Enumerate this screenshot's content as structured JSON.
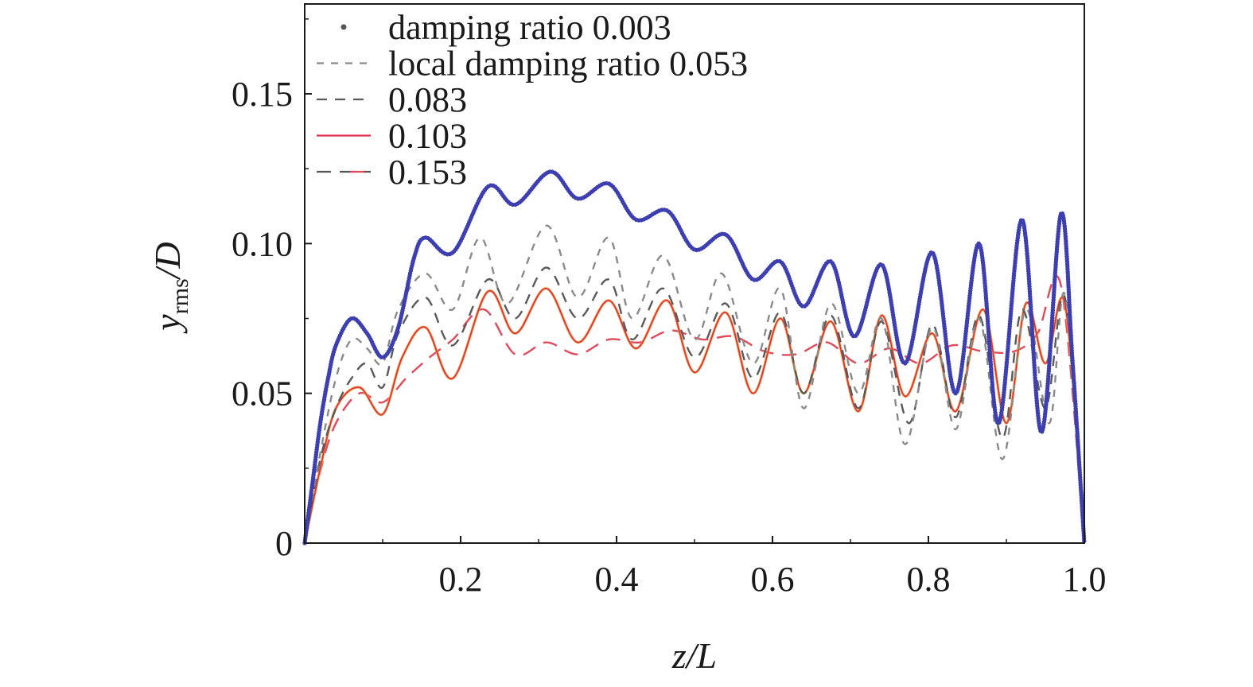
{
  "chart_data": {
    "type": "line",
    "xlabel": "z/L",
    "ylabel": "y_rms/D",
    "ylabel_main": "y",
    "ylabel_sub": "rms",
    "ylabel_tail": "/D",
    "xlim": [
      0,
      1.0
    ],
    "ylim": [
      0,
      0.18
    ],
    "xticks": [
      0.2,
      0.4,
      0.6,
      0.8,
      1.0
    ],
    "xtick_labels": [
      "0.2",
      "0.4",
      "0.6",
      "0.8",
      "1.0"
    ],
    "yticks": [
      0,
      0.05,
      0.1,
      0.15
    ],
    "ytick_labels": [
      "0",
      "0.05",
      "0.10",
      "0.15"
    ],
    "grid": false,
    "legend_position": "top-left",
    "series": [
      {
        "name": "damping ratio 0.003",
        "style": "dotted",
        "color": "#3d3fb0",
        "x": [
          0,
          0.01,
          0.02,
          0.03,
          0.04,
          0.06,
          0.08,
          0.1,
          0.12,
          0.14,
          0.155,
          0.19,
          0.235,
          0.27,
          0.315,
          0.35,
          0.39,
          0.425,
          0.465,
          0.5,
          0.54,
          0.575,
          0.61,
          0.64,
          0.675,
          0.705,
          0.74,
          0.77,
          0.805,
          0.835,
          0.865,
          0.89,
          0.92,
          0.945,
          0.97,
          0.985,
          1.0
        ],
        "y": [
          0,
          0.02,
          0.04,
          0.055,
          0.066,
          0.075,
          0.07,
          0.062,
          0.072,
          0.095,
          0.102,
          0.097,
          0.119,
          0.113,
          0.124,
          0.115,
          0.12,
          0.108,
          0.111,
          0.098,
          0.103,
          0.088,
          0.094,
          0.079,
          0.094,
          0.069,
          0.093,
          0.06,
          0.097,
          0.05,
          0.1,
          0.04,
          0.108,
          0.037,
          0.11,
          0.06,
          0
        ]
      },
      {
        "name": "local damping ratio 0.053",
        "style": "short-dash",
        "color": "#8a8a8a",
        "x": [
          0,
          0.02,
          0.04,
          0.06,
          0.08,
          0.1,
          0.12,
          0.155,
          0.19,
          0.225,
          0.26,
          0.31,
          0.35,
          0.39,
          0.42,
          0.46,
          0.5,
          0.535,
          0.575,
          0.61,
          0.64,
          0.675,
          0.71,
          0.74,
          0.77,
          0.805,
          0.835,
          0.865,
          0.895,
          0.925,
          0.955,
          0.975,
          1.0
        ],
        "y": [
          0,
          0.03,
          0.055,
          0.068,
          0.065,
          0.06,
          0.078,
          0.09,
          0.078,
          0.102,
          0.08,
          0.106,
          0.082,
          0.102,
          0.075,
          0.096,
          0.068,
          0.09,
          0.06,
          0.085,
          0.045,
          0.08,
          0.05,
          0.075,
          0.033,
          0.072,
          0.038,
          0.075,
          0.028,
          0.078,
          0.04,
          0.083,
          0
        ]
      },
      {
        "name": "0.083",
        "style": "dash",
        "color": "#5a5a5a",
        "x": [
          0,
          0.02,
          0.04,
          0.06,
          0.08,
          0.1,
          0.12,
          0.155,
          0.19,
          0.235,
          0.27,
          0.31,
          0.35,
          0.39,
          0.42,
          0.46,
          0.5,
          0.54,
          0.575,
          0.61,
          0.64,
          0.675,
          0.71,
          0.74,
          0.775,
          0.805,
          0.835,
          0.865,
          0.895,
          0.92,
          0.95,
          0.975,
          1.0
        ],
        "y": [
          0,
          0.028,
          0.045,
          0.055,
          0.06,
          0.052,
          0.07,
          0.082,
          0.066,
          0.088,
          0.075,
          0.092,
          0.075,
          0.088,
          0.068,
          0.085,
          0.062,
          0.08,
          0.055,
          0.077,
          0.05,
          0.076,
          0.045,
          0.074,
          0.04,
          0.073,
          0.042,
          0.076,
          0.035,
          0.078,
          0.045,
          0.082,
          0
        ]
      },
      {
        "name": "0.103",
        "style": "solid",
        "color": "#d9304c",
        "x": [
          0,
          0.02,
          0.04,
          0.07,
          0.1,
          0.125,
          0.155,
          0.19,
          0.235,
          0.27,
          0.31,
          0.35,
          0.39,
          0.425,
          0.465,
          0.5,
          0.54,
          0.575,
          0.61,
          0.64,
          0.675,
          0.71,
          0.74,
          0.77,
          0.805,
          0.835,
          0.87,
          0.9,
          0.925,
          0.95,
          0.975,
          1.0
        ],
        "y": [
          0,
          0.025,
          0.045,
          0.052,
          0.043,
          0.062,
          0.072,
          0.055,
          0.084,
          0.07,
          0.085,
          0.067,
          0.081,
          0.065,
          0.081,
          0.057,
          0.077,
          0.05,
          0.075,
          0.05,
          0.074,
          0.044,
          0.076,
          0.049,
          0.07,
          0.044,
          0.078,
          0.04,
          0.08,
          0.06,
          0.08,
          0
        ]
      },
      {
        "name": "0.153",
        "style": "long-dash",
        "color": "#e04a5a",
        "x": [
          0,
          0.02,
          0.04,
          0.07,
          0.1,
          0.13,
          0.16,
          0.19,
          0.23,
          0.27,
          0.31,
          0.35,
          0.39,
          0.43,
          0.47,
          0.51,
          0.55,
          0.59,
          0.63,
          0.67,
          0.71,
          0.75,
          0.79,
          0.83,
          0.87,
          0.91,
          0.94,
          0.97,
          1.0
        ],
        "y": [
          0,
          0.024,
          0.04,
          0.05,
          0.047,
          0.055,
          0.062,
          0.068,
          0.078,
          0.063,
          0.067,
          0.063,
          0.068,
          0.067,
          0.071,
          0.068,
          0.069,
          0.064,
          0.063,
          0.067,
          0.06,
          0.065,
          0.06,
          0.066,
          0.064,
          0.064,
          0.07,
          0.086,
          0
        ]
      }
    ]
  }
}
